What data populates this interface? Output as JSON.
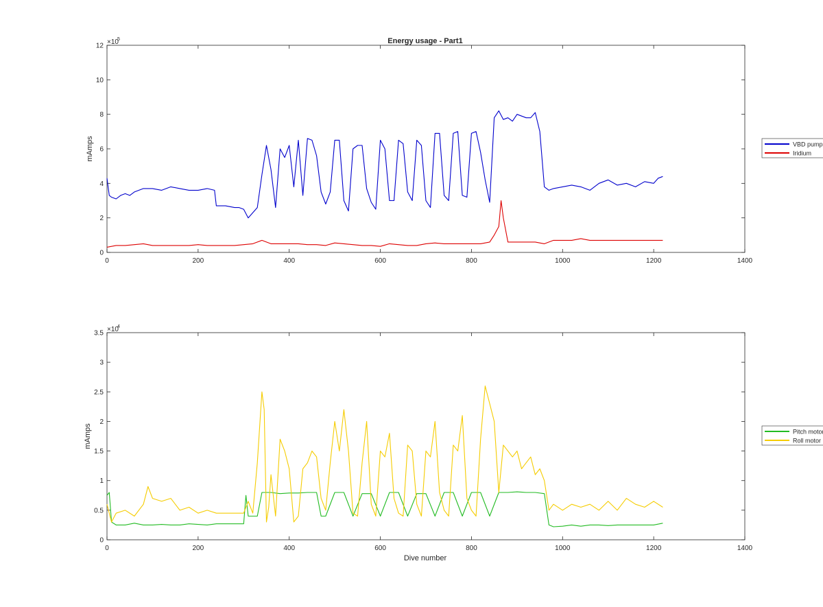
{
  "figure": {
    "background": "#ffffff"
  },
  "chart_data": [
    {
      "type": "line",
      "title": "Energy usage - Part1",
      "xlabel": "",
      "ylabel": "mAmps",
      "xlim": [
        0,
        1400
      ],
      "ylim": [
        0,
        1200000
      ],
      "exponent_label": "×10",
      "exponent_power": "5",
      "xticks": [
        0,
        200,
        400,
        600,
        800,
        1000,
        1200,
        1400
      ],
      "xtick_labels": [
        "0",
        "200",
        "400",
        "600",
        "800",
        "1000",
        "1200",
        "1400"
      ],
      "yticks": [
        0,
        200000,
        400000,
        600000,
        800000,
        1000000,
        1200000
      ],
      "ytick_labels": [
        "0",
        "2",
        "4",
        "6",
        "8",
        "10",
        "12"
      ],
      "grid": false,
      "legend_position": "outside-right",
      "series": [
        {
          "name": "VBD pump",
          "color": "#0000cc",
          "x": [
            0,
            5,
            10,
            20,
            30,
            40,
            50,
            60,
            80,
            100,
            120,
            140,
            160,
            180,
            200,
            220,
            236,
            240,
            260,
            280,
            290,
            300,
            310,
            320,
            330,
            340,
            350,
            360,
            370,
            380,
            390,
            400,
            410,
            420,
            430,
            440,
            450,
            460,
            470,
            480,
            490,
            500,
            510,
            520,
            530,
            540,
            550,
            560,
            570,
            580,
            590,
            600,
            610,
            620,
            630,
            640,
            650,
            660,
            670,
            680,
            690,
            700,
            710,
            720,
            730,
            740,
            750,
            760,
            770,
            780,
            790,
            800,
            810,
            820,
            830,
            840,
            850,
            860,
            870,
            880,
            890,
            900,
            910,
            920,
            930,
            940,
            950,
            960,
            970,
            980,
            1000,
            1020,
            1040,
            1060,
            1080,
            1100,
            1120,
            1140,
            1160,
            1180,
            1200,
            1210,
            1220
          ],
          "y": [
            430000,
            330000,
            320000,
            310000,
            330000,
            340000,
            330000,
            350000,
            370000,
            370000,
            360000,
            380000,
            370000,
            360000,
            360000,
            370000,
            360000,
            270000,
            270000,
            260000,
            260000,
            250000,
            200000,
            230000,
            260000,
            450000,
            620000,
            480000,
            260000,
            600000,
            550000,
            620000,
            380000,
            650000,
            330000,
            660000,
            650000,
            560000,
            350000,
            280000,
            350000,
            650000,
            650000,
            300000,
            240000,
            600000,
            620000,
            620000,
            370000,
            290000,
            250000,
            650000,
            600000,
            300000,
            300000,
            650000,
            630000,
            350000,
            300000,
            650000,
            620000,
            300000,
            260000,
            690000,
            690000,
            330000,
            300000,
            690000,
            700000,
            330000,
            320000,
            690000,
            700000,
            580000,
            420000,
            290000,
            780000,
            820000,
            770000,
            780000,
            760000,
            800000,
            790000,
            780000,
            780000,
            810000,
            700000,
            380000,
            360000,
            370000,
            380000,
            390000,
            380000,
            360000,
            400000,
            420000,
            390000,
            400000,
            380000,
            410000,
            400000,
            430000,
            440000
          ]
        },
        {
          "name": "Iridium",
          "color": "#dd0000",
          "x": [
            0,
            20,
            40,
            60,
            80,
            100,
            120,
            140,
            160,
            180,
            200,
            220,
            240,
            260,
            280,
            300,
            320,
            340,
            360,
            380,
            400,
            420,
            440,
            460,
            480,
            500,
            520,
            540,
            560,
            580,
            600,
            620,
            640,
            660,
            680,
            700,
            720,
            740,
            760,
            780,
            800,
            820,
            840,
            850,
            860,
            865,
            870,
            880,
            900,
            920,
            940,
            960,
            980,
            1000,
            1020,
            1040,
            1060,
            1080,
            1100,
            1120,
            1140,
            1160,
            1180,
            1200,
            1220
          ],
          "y": [
            30000,
            40000,
            40000,
            45000,
            50000,
            40000,
            40000,
            40000,
            40000,
            40000,
            45000,
            40000,
            40000,
            40000,
            40000,
            45000,
            50000,
            70000,
            50000,
            50000,
            50000,
            50000,
            45000,
            45000,
            40000,
            55000,
            50000,
            45000,
            40000,
            40000,
            35000,
            50000,
            45000,
            40000,
            40000,
            50000,
            55000,
            50000,
            50000,
            50000,
            50000,
            50000,
            60000,
            100000,
            150000,
            300000,
            200000,
            60000,
            60000,
            60000,
            60000,
            50000,
            70000,
            70000,
            70000,
            80000,
            70000,
            70000,
            70000,
            70000,
            70000,
            70000,
            70000,
            70000,
            70000
          ]
        }
      ]
    },
    {
      "type": "line",
      "title": "",
      "xlabel": "Dive number",
      "ylabel": "mAmps",
      "xlim": [
        0,
        1400
      ],
      "ylim": [
        0,
        35000
      ],
      "exponent_label": "×10",
      "exponent_power": "4",
      "xticks": [
        0,
        200,
        400,
        600,
        800,
        1000,
        1200,
        1400
      ],
      "xtick_labels": [
        "0",
        "200",
        "400",
        "600",
        "800",
        "1000",
        "1200",
        "1400"
      ],
      "yticks": [
        0,
        5000,
        10000,
        15000,
        20000,
        25000,
        30000,
        35000
      ],
      "ytick_labels": [
        "0",
        "0.5",
        "1",
        "1.5",
        "2",
        "2.5",
        "3",
        "3.5"
      ],
      "grid": false,
      "legend_position": "outside-right",
      "series": [
        {
          "name": "Pitch motor",
          "color": "#22bb22",
          "x": [
            0,
            5,
            10,
            20,
            40,
            60,
            80,
            100,
            120,
            140,
            160,
            180,
            200,
            220,
            240,
            260,
            280,
            300,
            305,
            310,
            330,
            340,
            360,
            380,
            400,
            420,
            440,
            460,
            470,
            480,
            500,
            520,
            540,
            560,
            580,
            600,
            620,
            640,
            660,
            680,
            700,
            720,
            740,
            760,
            780,
            800,
            820,
            840,
            860,
            880,
            900,
            920,
            940,
            960,
            970,
            980,
            1000,
            1020,
            1040,
            1060,
            1080,
            1100,
            1120,
            1140,
            1160,
            1180,
            1200,
            1220
          ],
          "y": [
            7500,
            8000,
            3000,
            2500,
            2500,
            2800,
            2500,
            2500,
            2600,
            2500,
            2500,
            2700,
            2600,
            2500,
            2700,
            2700,
            2700,
            2700,
            7500,
            4000,
            4000,
            8000,
            8000,
            7800,
            7900,
            7900,
            8000,
            8000,
            4000,
            4000,
            8000,
            8000,
            4000,
            7800,
            7800,
            4000,
            8000,
            8000,
            4000,
            7800,
            7800,
            4000,
            8000,
            8000,
            4000,
            8000,
            8000,
            4000,
            8000,
            8000,
            8100,
            8000,
            8000,
            7800,
            2500,
            2200,
            2300,
            2500,
            2300,
            2500,
            2500,
            2400,
            2500,
            2500,
            2500,
            2500,
            2500,
            2800
          ]
        },
        {
          "name": "Roll motor",
          "color": "#f5cc00",
          "x": [
            0,
            10,
            20,
            40,
            60,
            80,
            90,
            100,
            120,
            140,
            160,
            180,
            200,
            220,
            240,
            260,
            280,
            300,
            310,
            320,
            330,
            340,
            345,
            350,
            355,
            360,
            370,
            380,
            390,
            400,
            410,
            420,
            430,
            440,
            450,
            460,
            470,
            480,
            490,
            500,
            510,
            520,
            530,
            540,
            550,
            560,
            570,
            580,
            590,
            600,
            610,
            620,
            630,
            640,
            650,
            660,
            670,
            680,
            690,
            700,
            710,
            720,
            730,
            740,
            750,
            760,
            770,
            780,
            790,
            800,
            810,
            820,
            830,
            840,
            850,
            860,
            870,
            880,
            890,
            900,
            910,
            920,
            930,
            940,
            950,
            960,
            970,
            980,
            1000,
            1020,
            1040,
            1060,
            1080,
            1100,
            1120,
            1140,
            1160,
            1180,
            1200,
            1220
          ],
          "y": [
            6000,
            3000,
            4500,
            5000,
            4000,
            6000,
            9000,
            7000,
            6500,
            7000,
            5000,
            5500,
            4500,
            5000,
            4500,
            4500,
            4500,
            4500,
            6500,
            4500,
            13000,
            25000,
            22000,
            3000,
            5500,
            11000,
            4000,
            17000,
            15000,
            12000,
            3000,
            4000,
            12000,
            13000,
            15000,
            14000,
            7000,
            5000,
            13000,
            20000,
            15000,
            22000,
            15000,
            4500,
            4000,
            13000,
            20000,
            6000,
            4000,
            15000,
            14000,
            18000,
            7000,
            4500,
            4000,
            16000,
            15000,
            6000,
            4000,
            15000,
            14000,
            20000,
            8000,
            5000,
            4000,
            16000,
            15000,
            21000,
            7000,
            5000,
            4000,
            17000,
            26000,
            23000,
            20000,
            8000,
            16000,
            15000,
            14000,
            15000,
            12000,
            13000,
            14000,
            11000,
            12000,
            10000,
            5000,
            6000,
            5000,
            6000,
            5500,
            6000,
            5000,
            6500,
            5000,
            7000,
            6000,
            5500,
            6500,
            5500
          ]
        }
      ]
    }
  ]
}
